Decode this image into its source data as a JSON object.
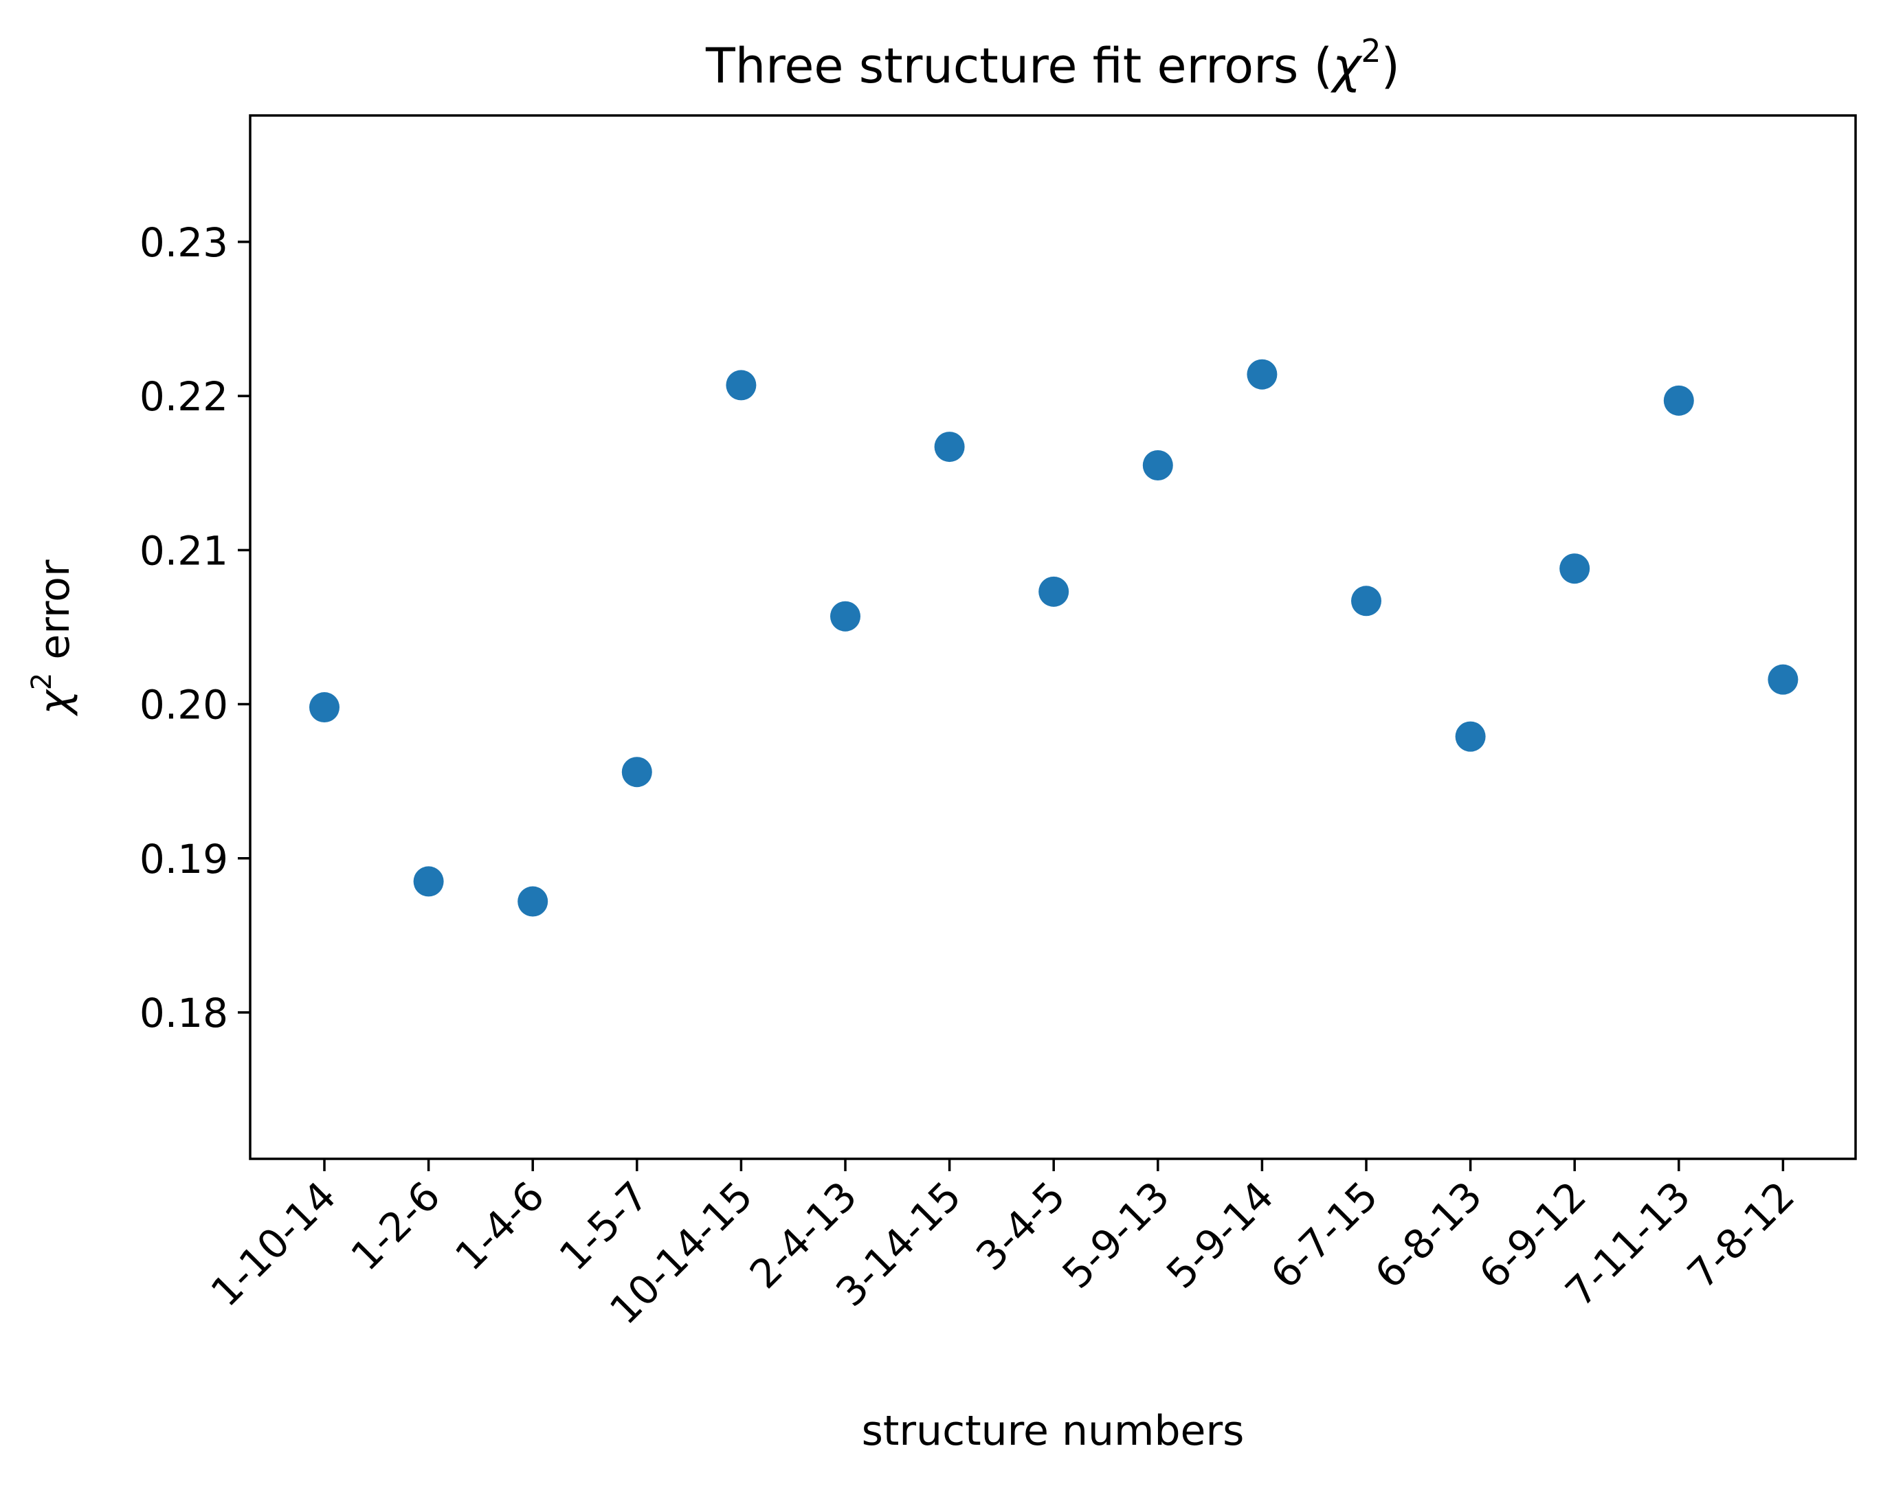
{
  "chart_data": {
    "type": "scatter",
    "title": "Three structure fit errors (",
    "title_symbol": "χ",
    "title_superscript": "2",
    "title_end": ")",
    "xlabel": "structure numbers",
    "ylabel_symbol": "χ",
    "ylabel_superscript": "2",
    "ylabel_text": " error",
    "categories": [
      "1-10-14",
      "1-2-6",
      "1-4-6",
      "1-5-7",
      "10-14-15",
      "2-4-13",
      "3-14-15",
      "3-4-5",
      "5-9-13",
      "5-9-14",
      "6-7-15",
      "6-8-13",
      "6-9-12",
      "7-11-13",
      "7-8-12"
    ],
    "values": [
      0.1998,
      0.1885,
      0.1872,
      0.1956,
      0.2207,
      0.2057,
      0.2167,
      0.2073,
      0.2155,
      0.2214,
      0.2067,
      0.1979,
      0.2088,
      0.2197,
      0.2016
    ],
    "ylim": [
      0.1705,
      0.2382
    ],
    "yticks": [
      0.18,
      0.19,
      0.2,
      0.21,
      0.22,
      0.23
    ],
    "ytick_labels": [
      "0.18",
      "0.19",
      "0.20",
      "0.21",
      "0.22",
      "0.23"
    ],
    "marker_color": "#1f77b4",
    "grid": false,
    "legend": "none"
  }
}
